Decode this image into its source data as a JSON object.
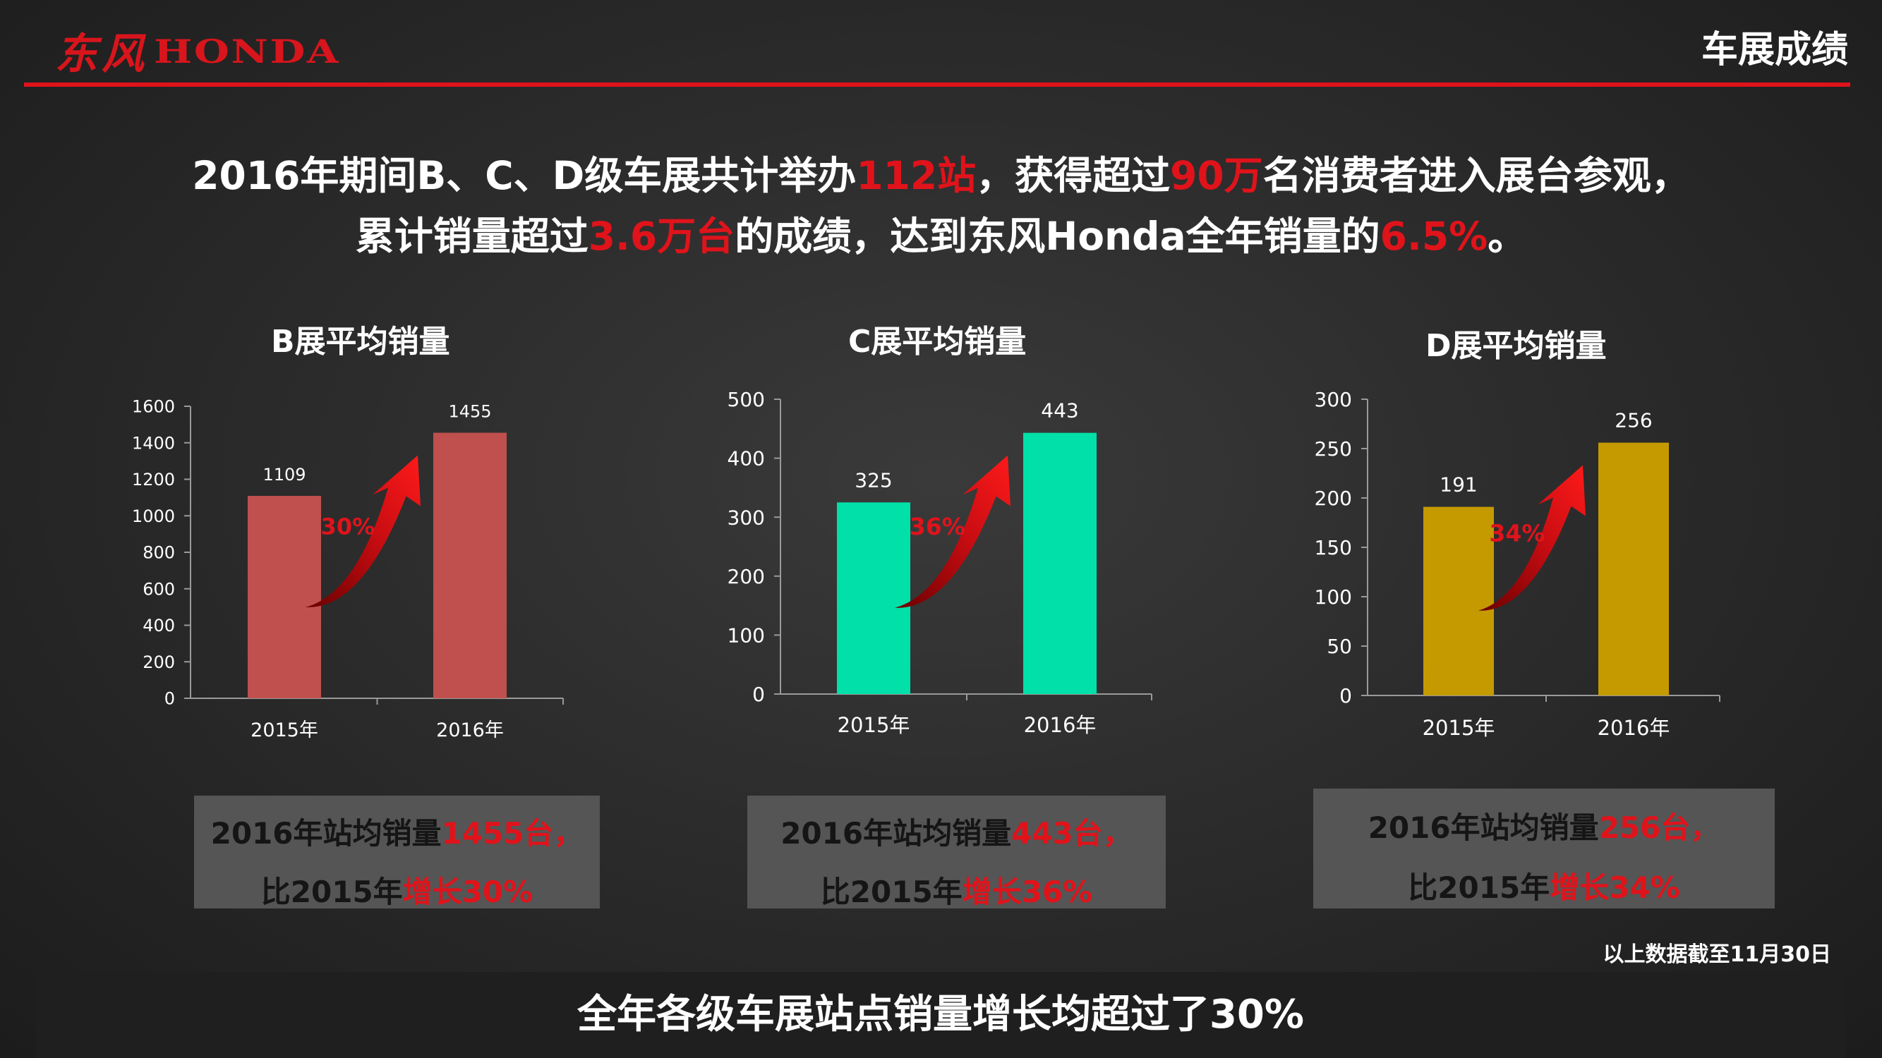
{
  "header": {
    "logo_cn": "东风",
    "logo_en": "HONDA",
    "title": "车展成绩"
  },
  "headline": {
    "l1_a": "2016年期间B、C、D级车展共计举办",
    "l1_b": "112站",
    "l1_c": "，获得超过",
    "l1_d": "90万",
    "l1_e": "名消费者进入展台参观，",
    "l2_a": "累计销量超过",
    "l2_b": "3.6万台",
    "l2_c": "的成绩，达到东风Honda全年销量的",
    "l2_d": "6.5%",
    "l2_e": "。"
  },
  "chart_data": [
    {
      "type": "bar",
      "title": "B展平均销量",
      "categories": [
        "2015年",
        "2016年"
      ],
      "values": [
        1109,
        1455
      ],
      "ylim": [
        0,
        1600
      ],
      "yticks": [
        0,
        200,
        400,
        600,
        800,
        1000,
        1200,
        1400,
        1600
      ],
      "growth_label": "30%",
      "color": "#c0504d"
    },
    {
      "type": "bar",
      "title": "C展平均销量",
      "categories": [
        "2015年",
        "2016年"
      ],
      "values": [
        325,
        443
      ],
      "ylim": [
        0,
        500
      ],
      "yticks": [
        0,
        100,
        200,
        300,
        400,
        500
      ],
      "growth_label": "36%",
      "color": "#00e0a8"
    },
    {
      "type": "bar",
      "title": "D展平均销量",
      "categories": [
        "2015年",
        "2016年"
      ],
      "values": [
        191,
        256
      ],
      "ylim": [
        0,
        300
      ],
      "yticks": [
        0,
        50,
        100,
        150,
        200,
        250,
        300
      ],
      "growth_label": "34%",
      "color": "#c49a00"
    }
  ],
  "summary_boxes": [
    {
      "l1_a": "2016年站均销量",
      "l1_b": "1455台，",
      "l2_a": "比2015年",
      "l2_b": "增长30%"
    },
    {
      "l1_a": "2016年站均销量",
      "l1_b": "443台，",
      "l2_a": "比2015年",
      "l2_b": "增长36%"
    },
    {
      "l1_a": "2016年站均销量",
      "l1_b": "256台，",
      "l2_a": "比2015年",
      "l2_b": "增长34%"
    }
  ],
  "note": "以上数据截至11月30日",
  "footer": "全年各级车展站点销量增长均超过了30%",
  "colors": {
    "accent": "#e0131b",
    "box_bg": "#555555"
  }
}
